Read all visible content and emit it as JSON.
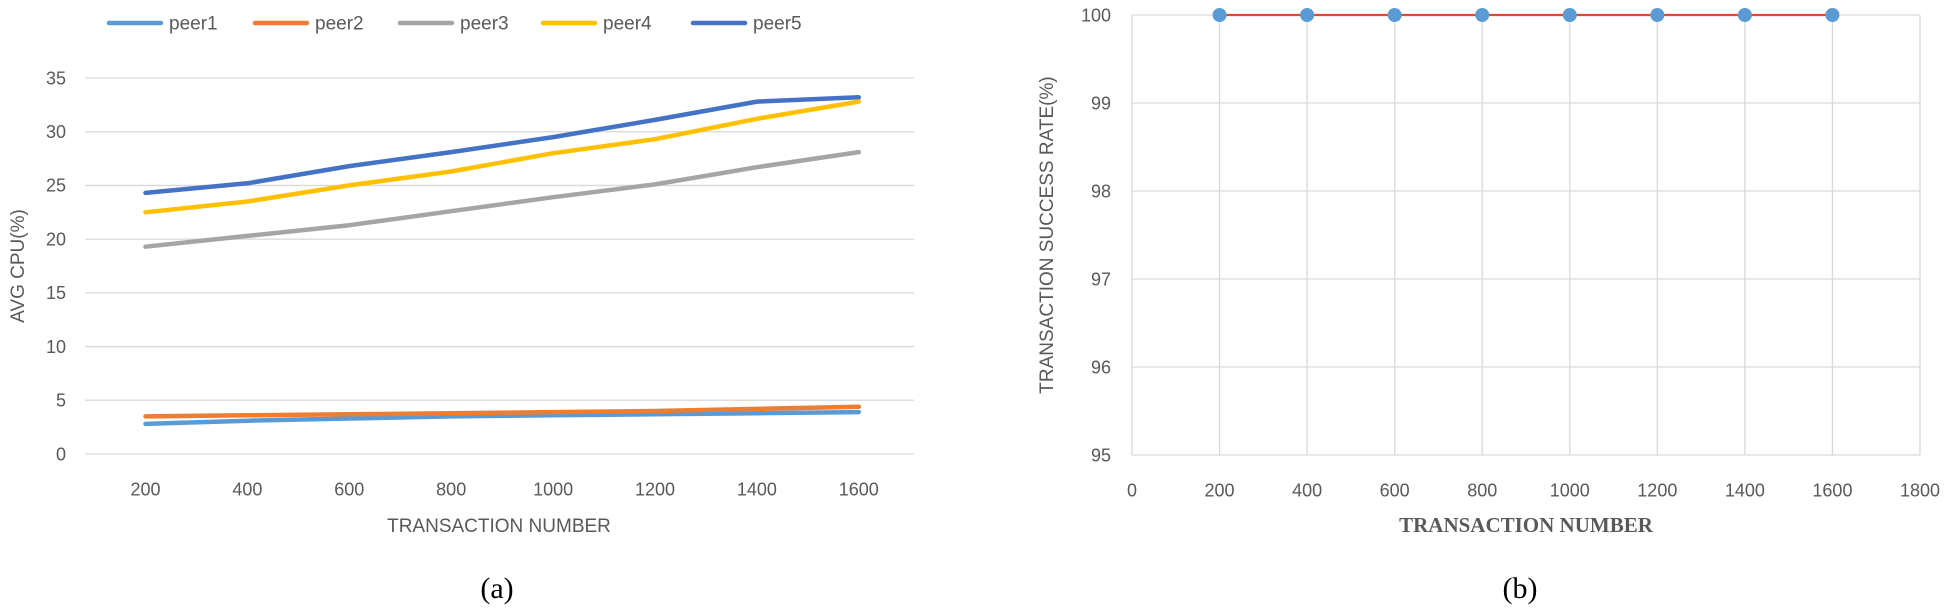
{
  "figure": {
    "caption_a": "(a)",
    "caption_b": "(b)"
  },
  "chart_data": [
    {
      "type": "line",
      "title": "",
      "xlabel": "TRANSACTION NUMBER",
      "ylabel": "AVG CPU(%)",
      "categories": [
        "200",
        "400",
        "600",
        "800",
        "1000",
        "1200",
        "1400",
        "1600"
      ],
      "ylim": [
        0,
        35
      ],
      "yticks": [
        "0",
        "5",
        "10",
        "15",
        "20",
        "25",
        "30",
        "35"
      ],
      "grid": "horizontal",
      "legend": "top",
      "series": [
        {
          "name": "peer1",
          "color": "#5B9BD5",
          "values": [
            2.8,
            3.1,
            3.3,
            3.5,
            3.6,
            3.7,
            3.8,
            3.9
          ]
        },
        {
          "name": "peer2",
          "color": "#ED7D31",
          "values": [
            3.5,
            3.6,
            3.7,
            3.8,
            3.9,
            4.0,
            4.2,
            4.4
          ]
        },
        {
          "name": "peer3",
          "color": "#A5A5A5",
          "values": [
            19.3,
            20.3,
            21.3,
            22.6,
            23.9,
            25.1,
            26.7,
            28.1
          ]
        },
        {
          "name": "peer4",
          "color": "#FFC000",
          "values": [
            22.5,
            23.5,
            25.0,
            26.3,
            28.0,
            29.3,
            31.2,
            32.8
          ]
        },
        {
          "name": "peer5",
          "color": "#4472C4",
          "values": [
            24.3,
            25.2,
            26.8,
            28.1,
            29.5,
            31.1,
            32.8,
            33.2
          ]
        }
      ]
    },
    {
      "type": "line",
      "title": "",
      "xlabel": "TRANSACTION NUMBER",
      "ylabel": "TRANSACTION SUCCESS RATE(%)",
      "x": [
        200,
        400,
        600,
        800,
        1000,
        1200,
        1400,
        1600
      ],
      "y": [
        100,
        100,
        100,
        100,
        100,
        100,
        100,
        100
      ],
      "xlim": [
        0,
        1800
      ],
      "ylim": [
        95,
        100
      ],
      "xticks": [
        "0",
        "200",
        "400",
        "600",
        "800",
        "1000",
        "1200",
        "1400",
        "1600",
        "1800"
      ],
      "yticks": [
        "95",
        "96",
        "97",
        "98",
        "99",
        "100"
      ],
      "grid": "both",
      "line_color": "#E04A2F",
      "marker_color": "#5B9BD5"
    }
  ]
}
